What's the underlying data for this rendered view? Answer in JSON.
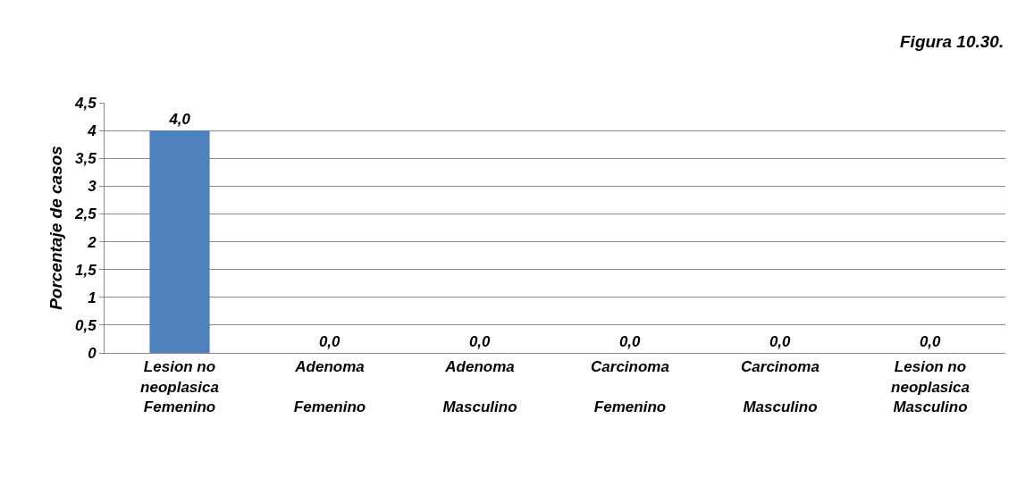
{
  "chart_data": {
    "type": "bar",
    "title": "Figura 10.30.",
    "ylabel": "Porcentaje de casos",
    "categories": [
      "Lesion no neoplasica\nFemenino",
      "Adenoma\nFemenino",
      "Adenoma\nMasculino",
      "Carcinoma\nFemenino",
      "Carcinoma\nMasculino",
      "Lesion no neoplasica\nMasculino"
    ],
    "values": [
      4.0,
      0,
      0,
      0,
      0,
      0
    ],
    "value_labels": [
      "4,0",
      "0,0",
      "0,0",
      "0,0",
      "0,0",
      "0,0"
    ],
    "color": "#4f81bd",
    "ylim": [
      0,
      4.5
    ],
    "yticks": [
      0,
      {
        "value": 0.5,
        "label": "0,5"
      },
      1,
      {
        "value": 1.5,
        "label": "1,5"
      },
      2,
      {
        "value": 2.5,
        "label": "2,5"
      },
      3,
      {
        "value": 3.5,
        "label": "3,5"
      },
      4,
      {
        "value": 4.5,
        "label": "4,5"
      }
    ],
    "grid": "y"
  }
}
